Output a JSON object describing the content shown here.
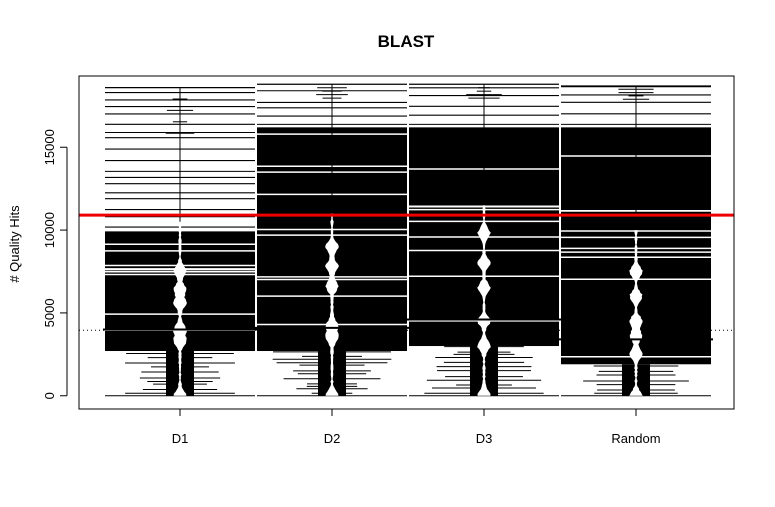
{
  "chart_data": {
    "type": "beanplot",
    "title": "BLAST",
    "xlabel": "",
    "ylabel": "# Quality Hits",
    "categories": [
      "D1",
      "D2",
      "D3",
      "Random"
    ],
    "yticks": [
      "0",
      "5000",
      "10000",
      "15000"
    ],
    "ytick_values": [
      0,
      5000,
      10000,
      15000
    ],
    "ylim": [
      -800,
      19300
    ],
    "overall_mean": 3950,
    "reference_line": {
      "value": 10900,
      "color": "#ee0000"
    },
    "grid": false,
    "series": [
      {
        "category": "D1",
        "bulk_low": 2700,
        "bulk_high": 10000,
        "max": 18600,
        "mean": 4000,
        "bean_top": 10500,
        "bean_peaks": [
          0,
          3300,
          4000,
          5600,
          6400,
          7500
        ]
      },
      {
        "category": "D2",
        "bulk_low": 2700,
        "bulk_high": 16200,
        "max": 18800,
        "mean": 4100,
        "bean_top": 11000,
        "bean_peaks": [
          0,
          3500,
          4200,
          6600,
          7800,
          9000
        ]
      },
      {
        "category": "D3",
        "bulk_low": 3000,
        "bulk_high": 16200,
        "max": 18800,
        "mean": 4600,
        "bean_top": 11500,
        "bean_peaks": [
          0,
          3000,
          4500,
          6500,
          8000,
          9800
        ]
      },
      {
        "category": "Random",
        "bulk_low": 1900,
        "bulk_high": 16200,
        "max": 18700,
        "mean": 3400,
        "bean_top": 10000,
        "bean_peaks": [
          0,
          2500,
          3600,
          4500,
          6000,
          7500
        ]
      }
    ]
  }
}
